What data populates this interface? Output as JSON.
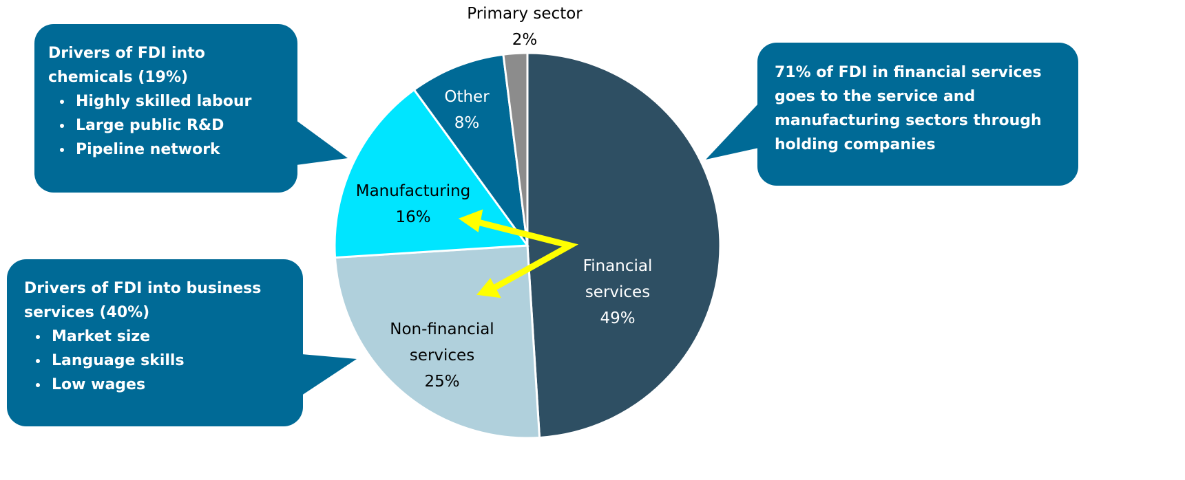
{
  "chart_data": {
    "type": "pie",
    "categories": [
      "Financial services",
      "Non-financial services",
      "Manufacturing",
      "Other",
      "Primary sector"
    ],
    "values": [
      49,
      25,
      16,
      8,
      2
    ],
    "value_labels": [
      "49%",
      "25%",
      "16%",
      "8%",
      "2%"
    ],
    "colors": [
      "#2e4f63",
      "#b0d0dc",
      "#00e5ff",
      "#006a96",
      "#8c8c8c"
    ],
    "annotations": [
      {
        "text": "Drivers of FDI into chemicals (19%)",
        "items": [
          "Highly skilled labour",
          "Large public R&D",
          "Pipeline network"
        ]
      },
      {
        "text": "Drivers of FDI into business services (40%)",
        "items": [
          "Market size",
          "Language skills",
          "Low wages"
        ]
      },
      {
        "text": "71% of FDI in financial services goes to the service and manufacturing sectors through holding companies"
      }
    ]
  }
}
